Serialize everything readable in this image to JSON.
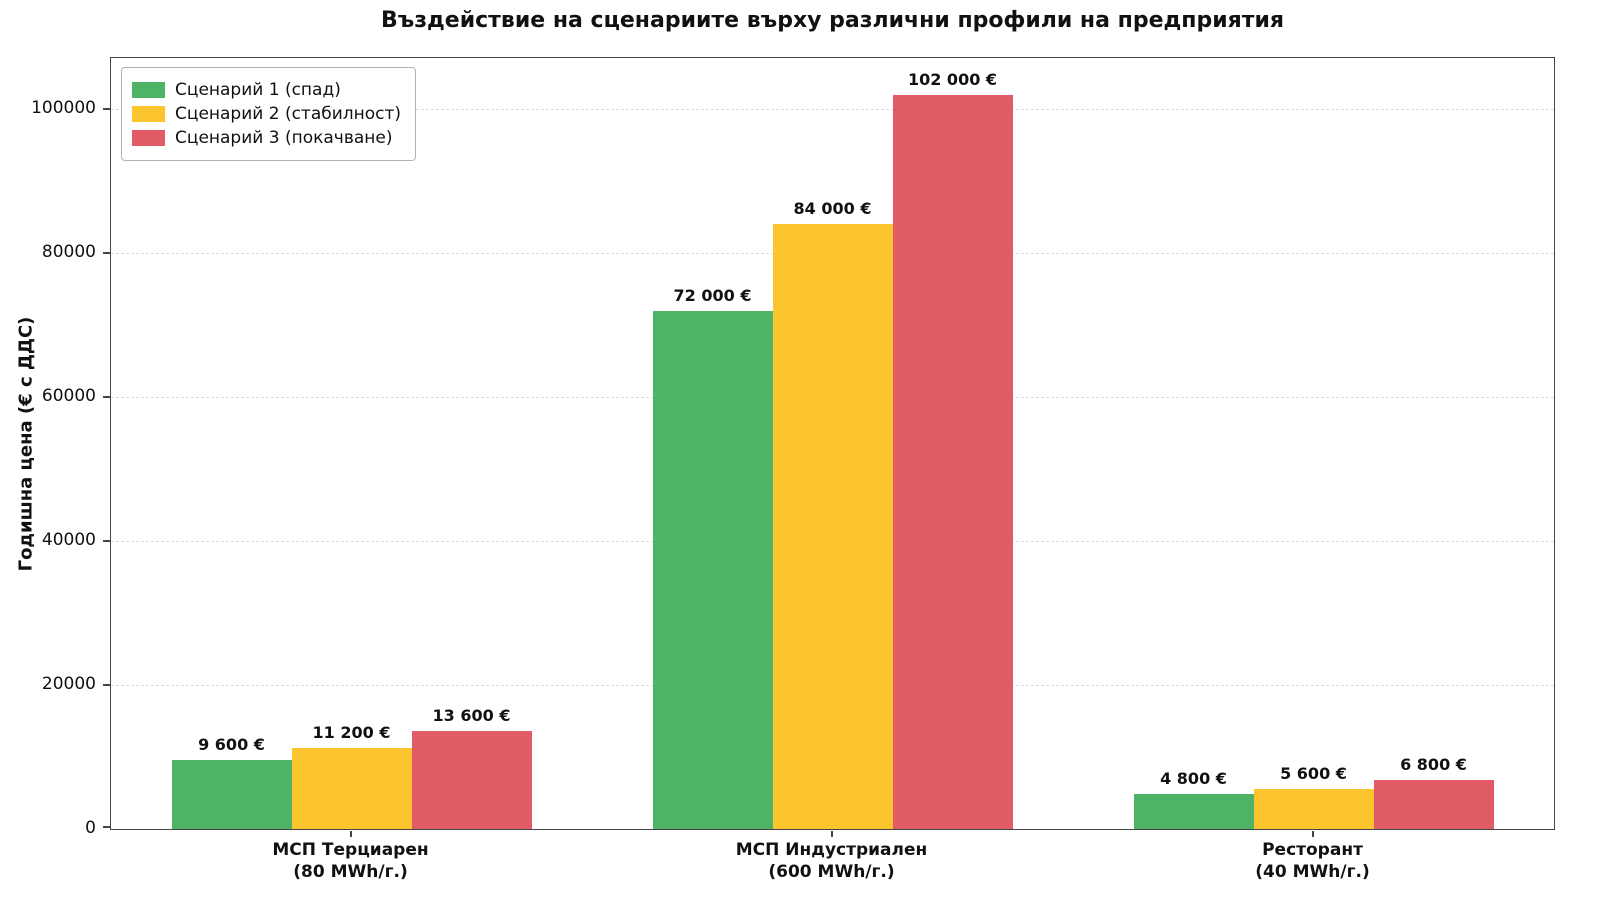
{
  "chart_data": {
    "type": "bar",
    "title": "Въздействие на сценариите върху различни профили на предприятия",
    "xlabel": "",
    "ylabel": "Годишна цена (€ с ДДС)",
    "categories": [
      "МСП Терциарен\n(80 MWh/г.)",
      "МСП Индустриален\n(600 MWh/г.)",
      "Ресторант\n(40 MWh/г.)"
    ],
    "series": [
      {
        "name": "Сценарий 1 (спад)",
        "color": "#4fb365",
        "values": [
          9600,
          72000,
          4800
        ],
        "value_labels": [
          "9 600 €",
          "72 000 €",
          "4 800 €"
        ]
      },
      {
        "name": "Сценарий 2 (стабилност)",
        "color": "#fcc42d",
        "values": [
          11200,
          84000,
          5600
        ],
        "value_labels": [
          "11 200 €",
          "84 000 €",
          "5 600 €"
        ]
      },
      {
        "name": "Сценарий 3 (покачване)",
        "color": "#e15b66",
        "values": [
          13600,
          102000,
          6800
        ],
        "value_labels": [
          "13 600 €",
          "102 000 €",
          "6 800 €"
        ]
      }
    ],
    "yticks": [
      0,
      20000,
      40000,
      60000,
      80000,
      100000
    ],
    "ylim": [
      0,
      107100
    ],
    "grid": true,
    "legend_position": "upper left"
  }
}
